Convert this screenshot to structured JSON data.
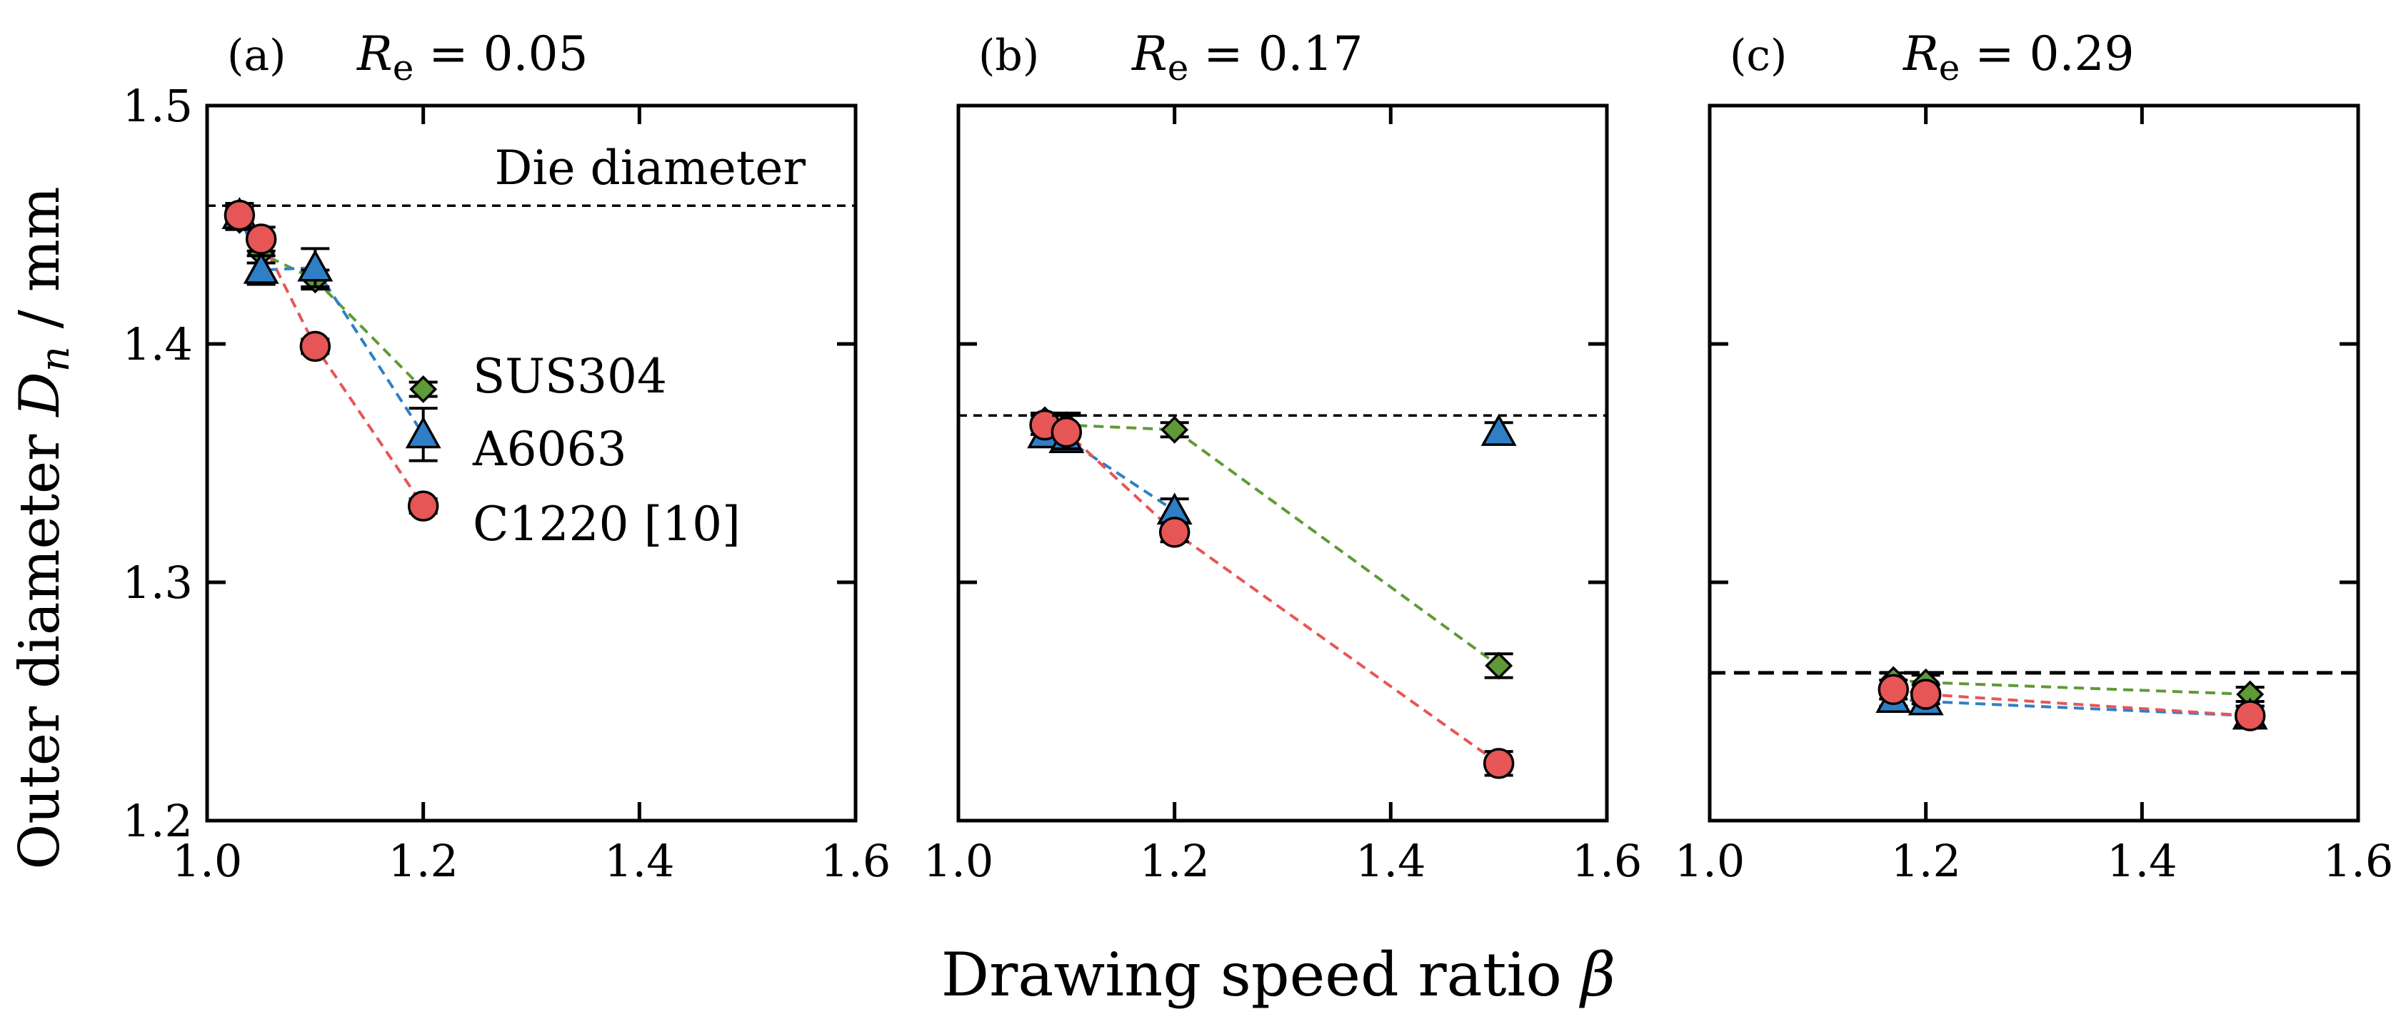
{
  "chart_data": {
    "type": "scatter",
    "y_title_main": "Outer diameter ",
    "y_title_var": "D",
    "y_title_sub": "n",
    "y_title_unit": " / mm",
    "x_title_main": "Drawing speed ratio ",
    "x_title_var": "β",
    "ylim": [
      1.2,
      1.5
    ],
    "xlim": [
      1.0,
      1.6
    ],
    "y_ticks": [
      "1.2",
      "1.3",
      "1.4",
      "1.5"
    ],
    "x_ticks": [
      "1.0",
      "1.2",
      "1.4",
      "1.6"
    ],
    "die_label": "Die diameter",
    "legend": [
      {
        "key": "SUS304",
        "text": "SUS304",
        "color": "#5f9a36",
        "marker": "diamond"
      },
      {
        "key": "A6063",
        "text": "A6063",
        "color": "#2f7fc6",
        "marker": "triangle"
      },
      {
        "key": "C1220",
        "text": "C1220 [10]",
        "color": "#e65656",
        "marker": "circle"
      }
    ],
    "panels": [
      {
        "label": "(a)",
        "re_var": "R",
        "re_sub": "e",
        "re_value": " = 0.05",
        "die": 1.458,
        "series": [
          {
            "key": "SUS304",
            "x": [
              1.03,
              1.05,
              1.1,
              1.2
            ],
            "y": [
              1.452,
              1.438,
              1.427,
              1.381
            ],
            "err": [
              0.004,
              0.004,
              0.004,
              0.003
            ]
          },
          {
            "key": "A6063",
            "x": [
              1.03,
              1.05,
              1.1,
              1.2
            ],
            "y": [
              1.454,
              1.431,
              1.432,
              1.362
            ],
            "err": [
              0.005,
              0.006,
              0.008,
              0.011
            ]
          },
          {
            "key": "C1220",
            "x": [
              1.03,
              1.05,
              1.1,
              1.2
            ],
            "y": [
              1.454,
              1.444,
              1.399,
              1.332
            ],
            "err": [
              0.003,
              0.005,
              0.003,
              0.003
            ]
          }
        ]
      },
      {
        "label": "(b)",
        "re_var": "R",
        "re_sub": "e",
        "re_value": " = 0.17",
        "die": 1.37,
        "series": [
          {
            "key": "SUS304",
            "x": [
              1.08,
              1.1,
              1.2,
              1.5
            ],
            "y": [
              1.368,
              1.366,
              1.364,
              1.265
            ],
            "err": [
              0.003,
              0.005,
              0.003,
              0.005
            ]
          },
          {
            "key": "A6063",
            "x": [
              1.08,
              1.1,
              1.2,
              1.5
            ],
            "y": [
              1.362,
              1.36,
              1.33,
              1.363
            ],
            "err": [
              0.004,
              0.005,
              0.005,
              0.004
            ]
          },
          {
            "key": "C1220",
            "x": [
              1.08,
              1.1,
              1.2,
              1.5
            ],
            "y": [
              1.366,
              1.363,
              1.321,
              1.224
            ],
            "err": [
              0.004,
              0.007,
              0.004,
              0.005
            ]
          }
        ]
      },
      {
        "label": "(c)",
        "re_var": "R",
        "re_sub": "e",
        "re_value": " = 0.29",
        "die": 1.262,
        "series": [
          {
            "key": "SUS304",
            "x": [
              1.17,
              1.2,
              1.5
            ],
            "y": [
              1.259,
              1.258,
              1.253
            ],
            "err": [
              0.003,
              0.003,
              0.003
            ]
          },
          {
            "key": "A6063",
            "x": [
              1.17,
              1.2,
              1.5
            ],
            "y": [
              1.251,
              1.25,
              1.244
            ],
            "err": [
              0.003,
              0.004,
              0.004
            ]
          },
          {
            "key": "C1220",
            "x": [
              1.17,
              1.2,
              1.5
            ],
            "y": [
              1.255,
              1.253,
              1.244
            ],
            "err": [
              0.004,
              0.004,
              0.004
            ]
          }
        ]
      }
    ]
  }
}
